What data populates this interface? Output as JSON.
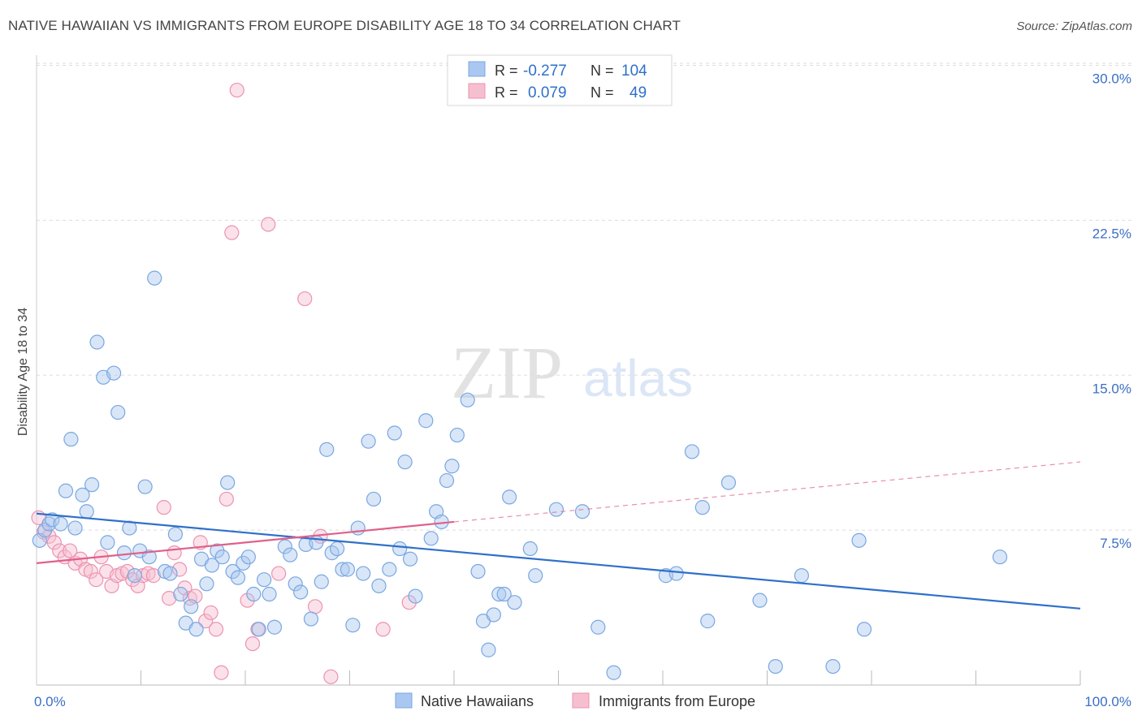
{
  "header": {
    "title": "NATIVE HAWAIIAN VS IMMIGRANTS FROM EUROPE DISABILITY AGE 18 TO 34 CORRELATION CHART",
    "source": "Source: ZipAtlas.com"
  },
  "watermark": {
    "zip": "ZIP",
    "atlas": "atlas"
  },
  "legend_box": {
    "rows": [
      {
        "r_label": "R =",
        "r_value": "-0.277",
        "n_label": "N =",
        "n_value": "104"
      },
      {
        "r_label": "R =",
        "r_value": "0.079",
        "n_label": "N =",
        "n_value": "49"
      }
    ]
  },
  "bottom_legend": [
    {
      "label": "Native Hawaiians"
    },
    {
      "label": "Immigrants from Europe"
    }
  ],
  "colors": {
    "blue_fill": "#a9c7f0",
    "blue_stroke": "#7aa7e0",
    "blue_line": "#2f70c9",
    "pink_fill": "#f6bfd0",
    "pink_stroke": "#eb93b0",
    "pink_line": "#e0608a",
    "tick_label": "#3b6fc4",
    "grid": "#dddddd"
  },
  "chart_data": {
    "type": "scatter",
    "title": "NATIVE HAWAIIAN VS IMMIGRANTS FROM EUROPE DISABILITY AGE 18 TO 34 CORRELATION CHART",
    "xlabel": "",
    "ylabel": "Disability Age 18 to 34",
    "xlim": [
      0,
      100
    ],
    "ylim": [
      0,
      31.5
    ],
    "y_ticks": [
      {
        "value": 7.5,
        "label": "7.5%"
      },
      {
        "value": 15.0,
        "label": "15.0%"
      },
      {
        "value": 22.5,
        "label": "22.5%"
      },
      {
        "value": 30.0,
        "label": "30.0%"
      }
    ],
    "x_tick_labels": [
      {
        "value": 0,
        "label": "0.0%"
      },
      {
        "value": 100,
        "label": "100.0%"
      }
    ],
    "grid": "horizontal dashed",
    "legend": "top-center",
    "series": [
      {
        "name": "Native Hawaiians",
        "color": "#a9c7f0",
        "trend": {
          "x": [
            0,
            100
          ],
          "y": [
            8.3,
            3.7
          ]
        },
        "points": [
          [
            0.3,
            7.0
          ],
          [
            0.8,
            7.5
          ],
          [
            1.2,
            7.8
          ],
          [
            1.5,
            8.0
          ],
          [
            2.3,
            7.8
          ],
          [
            2.8,
            9.4
          ],
          [
            3.3,
            11.9
          ],
          [
            3.7,
            7.6
          ],
          [
            4.4,
            9.2
          ],
          [
            4.8,
            8.4
          ],
          [
            5.3,
            9.7
          ],
          [
            5.8,
            16.6
          ],
          [
            6.4,
            14.9
          ],
          [
            6.8,
            6.9
          ],
          [
            7.4,
            15.1
          ],
          [
            7.8,
            13.2
          ],
          [
            8.4,
            6.4
          ],
          [
            8.9,
            7.6
          ],
          [
            9.4,
            5.3
          ],
          [
            9.9,
            6.5
          ],
          [
            10.4,
            9.6
          ],
          [
            10.8,
            6.2
          ],
          [
            11.3,
            19.7
          ],
          [
            12.3,
            5.5
          ],
          [
            12.8,
            5.4
          ],
          [
            13.3,
            7.3
          ],
          [
            13.8,
            4.4
          ],
          [
            14.3,
            3.0
          ],
          [
            14.8,
            3.8
          ],
          [
            15.3,
            2.7
          ],
          [
            15.8,
            6.1
          ],
          [
            16.3,
            4.9
          ],
          [
            16.8,
            5.8
          ],
          [
            17.3,
            6.5
          ],
          [
            17.8,
            6.2
          ],
          [
            18.3,
            9.8
          ],
          [
            18.8,
            5.5
          ],
          [
            19.3,
            5.2
          ],
          [
            19.8,
            5.9
          ],
          [
            20.3,
            6.2
          ],
          [
            20.8,
            4.4
          ],
          [
            21.3,
            2.7
          ],
          [
            21.8,
            5.1
          ],
          [
            22.3,
            4.4
          ],
          [
            22.8,
            2.8
          ],
          [
            23.8,
            6.7
          ],
          [
            24.3,
            6.3
          ],
          [
            24.8,
            4.9
          ],
          [
            25.3,
            4.5
          ],
          [
            25.8,
            6.8
          ],
          [
            26.3,
            3.2
          ],
          [
            26.8,
            6.9
          ],
          [
            27.3,
            5.0
          ],
          [
            27.8,
            11.4
          ],
          [
            28.3,
            6.4
          ],
          [
            28.8,
            6.6
          ],
          [
            29.3,
            5.6
          ],
          [
            29.8,
            5.6
          ],
          [
            30.3,
            2.9
          ],
          [
            30.8,
            7.6
          ],
          [
            31.3,
            5.4
          ],
          [
            31.8,
            11.8
          ],
          [
            32.3,
            9.0
          ],
          [
            32.8,
            4.8
          ],
          [
            33.8,
            5.6
          ],
          [
            34.3,
            12.2
          ],
          [
            34.8,
            6.6
          ],
          [
            35.3,
            10.8
          ],
          [
            35.8,
            6.1
          ],
          [
            36.3,
            4.3
          ],
          [
            37.3,
            12.8
          ],
          [
            37.8,
            7.1
          ],
          [
            38.3,
            8.4
          ],
          [
            38.8,
            7.9
          ],
          [
            39.3,
            9.9
          ],
          [
            39.8,
            10.6
          ],
          [
            40.3,
            12.1
          ],
          [
            41.3,
            13.8
          ],
          [
            42.3,
            5.5
          ],
          [
            42.8,
            3.1
          ],
          [
            43.3,
            1.7
          ],
          [
            43.8,
            3.4
          ],
          [
            44.3,
            4.4
          ],
          [
            44.8,
            4.4
          ],
          [
            45.3,
            9.1
          ],
          [
            45.8,
            4.0
          ],
          [
            47.3,
            6.6
          ],
          [
            47.8,
            5.3
          ],
          [
            49.8,
            8.5
          ],
          [
            52.3,
            8.4
          ],
          [
            53.8,
            2.8
          ],
          [
            55.3,
            0.6
          ],
          [
            60.3,
            5.3
          ],
          [
            61.3,
            5.4
          ],
          [
            62.8,
            11.3
          ],
          [
            63.8,
            8.6
          ],
          [
            64.3,
            3.1
          ],
          [
            66.3,
            9.8
          ],
          [
            69.3,
            4.1
          ],
          [
            70.8,
            0.9
          ],
          [
            73.3,
            5.3
          ],
          [
            76.3,
            0.9
          ],
          [
            78.8,
            7.0
          ],
          [
            79.3,
            2.7
          ],
          [
            92.3,
            6.2
          ]
        ]
      },
      {
        "name": "Immigrants from Europe",
        "color": "#f6bfd0",
        "trend": {
          "x": [
            0,
            40
          ],
          "y": [
            5.9,
            7.9
          ],
          "dashed_extension": {
            "x": [
              40,
              100
            ],
            "y": [
              7.9,
              10.8
            ]
          }
        },
        "points": [
          [
            0.2,
            8.1
          ],
          [
            0.7,
            7.4
          ],
          [
            1.2,
            7.2
          ],
          [
            1.7,
            6.9
          ],
          [
            2.2,
            6.5
          ],
          [
            2.7,
            6.2
          ],
          [
            3.2,
            6.5
          ],
          [
            3.7,
            5.9
          ],
          [
            4.2,
            6.1
          ],
          [
            4.7,
            5.6
          ],
          [
            5.2,
            5.5
          ],
          [
            5.7,
            5.1
          ],
          [
            6.2,
            6.2
          ],
          [
            6.7,
            5.5
          ],
          [
            7.2,
            4.8
          ],
          [
            7.7,
            5.3
          ],
          [
            8.2,
            5.4
          ],
          [
            8.7,
            5.5
          ],
          [
            9.2,
            5.1
          ],
          [
            9.7,
            4.8
          ],
          [
            10.2,
            5.3
          ],
          [
            10.7,
            5.4
          ],
          [
            11.2,
            5.3
          ],
          [
            12.2,
            8.6
          ],
          [
            12.7,
            4.2
          ],
          [
            13.2,
            6.4
          ],
          [
            13.7,
            5.6
          ],
          [
            14.2,
            4.7
          ],
          [
            14.7,
            4.2
          ],
          [
            15.2,
            4.3
          ],
          [
            15.7,
            6.9
          ],
          [
            16.2,
            3.1
          ],
          [
            16.7,
            3.5
          ],
          [
            17.2,
            2.7
          ],
          [
            17.7,
            0.6
          ],
          [
            18.2,
            9.0
          ],
          [
            18.7,
            21.9
          ],
          [
            19.2,
            28.8
          ],
          [
            20.2,
            4.1
          ],
          [
            20.7,
            2.0
          ],
          [
            21.2,
            2.7
          ],
          [
            22.2,
            22.3
          ],
          [
            23.2,
            5.4
          ],
          [
            25.7,
            18.7
          ],
          [
            26.7,
            3.8
          ],
          [
            27.2,
            7.2
          ],
          [
            28.2,
            0.4
          ],
          [
            33.2,
            2.7
          ],
          [
            35.7,
            4.0
          ]
        ]
      }
    ]
  }
}
